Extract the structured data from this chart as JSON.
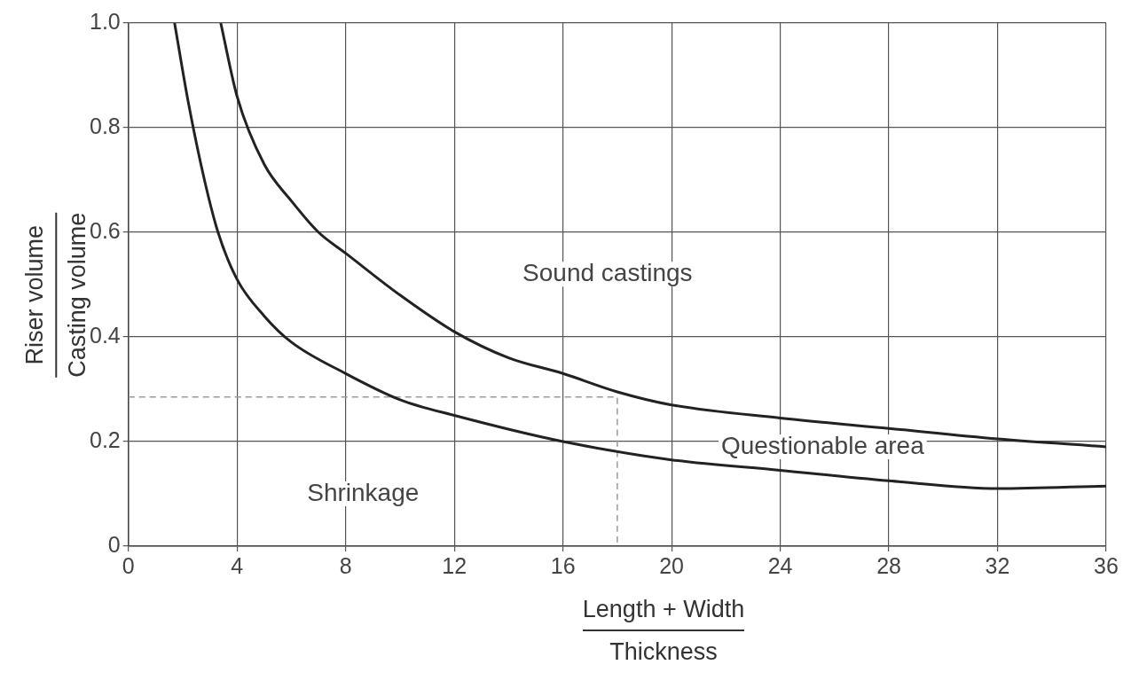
{
  "chart_data": {
    "type": "line",
    "xlabel": "Length + Width\nThickness",
    "ylabel": "Riser volume\nCasting volume",
    "xlim": [
      0,
      36
    ],
    "xticks": [
      0,
      4,
      8,
      12,
      16,
      20,
      24,
      28,
      32,
      36
    ],
    "ylim": [
      0,
      1
    ],
    "yticks": [
      0,
      0.2,
      0.4,
      0.6,
      0.8,
      {
        "value": 1,
        "label": "1.0"
      }
    ],
    "grid": true,
    "legend": false,
    "marker": "none",
    "series": [
      {
        "color": "#222222",
        "x": [
          1.7,
          2.2,
          2.8,
          3.3,
          4,
          5,
          6,
          8,
          10,
          12,
          16,
          20,
          24,
          28,
          32,
          36
        ],
        "values": [
          1.0,
          0.85,
          0.7,
          0.6,
          0.51,
          0.44,
          0.39,
          0.33,
          0.28,
          0.25,
          0.2,
          0.165,
          0.145,
          0.125,
          0.11,
          0.115
        ]
      },
      {
        "color": "#222222",
        "x": [
          3.4,
          4,
          5,
          6,
          7,
          8,
          10,
          12,
          14,
          16,
          18,
          20,
          24,
          28,
          32,
          36
        ],
        "values": [
          1.0,
          0.86,
          0.73,
          0.66,
          0.6,
          0.56,
          0.48,
          0.41,
          0.36,
          0.33,
          0.295,
          0.27,
          0.245,
          0.225,
          0.205,
          0.19
        ]
      },
      {
        "color": "#999999",
        "line_style": "dashed",
        "x": [
          0,
          18,
          18
        ],
        "values": [
          0.285,
          0.285,
          0
        ]
      }
    ],
    "annotations": [
      "Sound castings",
      "Questionable area",
      "Shrinkage"
    ]
  }
}
